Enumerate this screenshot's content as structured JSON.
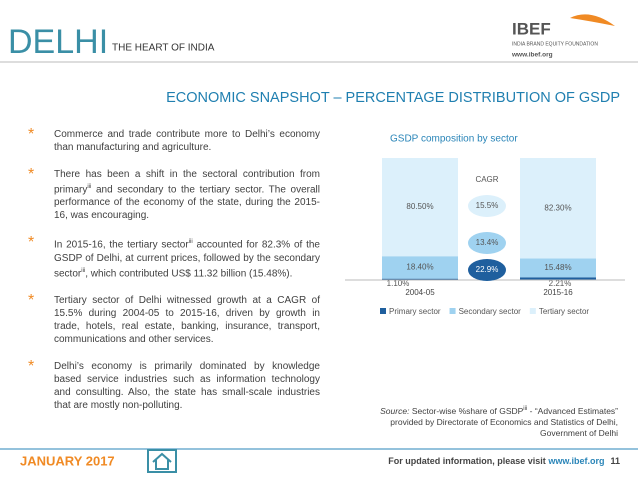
{
  "header": {
    "title": "DELHI",
    "subtitle": "THE HEART OF INDIA",
    "logo": "IBEF",
    "logo_caption": "INDIA BRAND EQUITY FOUNDATION",
    "logo_url": "www.ibef.org"
  },
  "heading": "ECONOMIC SNAPSHOT – PERCENTAGE DISTRIBUTION OF GSDP",
  "bullets": [
    [
      "Commerce and trade contribute more to Delhi’s economy than manufacturing and agriculture."
    ],
    [
      "There has been a shift in the sectoral contribution from primary",
      "iii",
      " and secondary to the tertiary sector. The overall performance of the economy of the state, during the 2015-16, was encouraging."
    ],
    [
      "In 2015-16, the tertiary sector",
      "iii",
      " accounted for 82.3% of the GSDP of Delhi, at current prices, followed by the secondary sector",
      "iii",
      ", which contributed US$ 11.32 billion (15.48%)."
    ],
    [
      "Tertiary sector of Delhi witnessed growth at a CAGR of 15.5% during 2004-05 to 2015-16, driven by growth in trade, hotels, real estate, banking, insurance, transport, communications and other services."
    ],
    [
      "Delhi’s economy is primarily dominated by knowledge based service industries such as information technology and consulting. Also, the state has small-scale industries that are mostly non-polluting."
    ]
  ],
  "chart_data": {
    "type": "stacked_bar",
    "title": "GSDP composition by sector",
    "categories": [
      "2004-05",
      "2015-16"
    ],
    "ylim": [
      0,
      100
    ],
    "series": [
      {
        "name": "Primary sector",
        "color": "#1f5f9e",
        "values": [
          1.1,
          2.21
        ],
        "value_labels": [
          "1.10%",
          "2.21%"
        ]
      },
      {
        "name": "Secondary sector",
        "color": "#9fd2f0",
        "values": [
          18.4,
          15.48
        ],
        "value_labels": [
          "18.40%",
          "15.48%"
        ]
      },
      {
        "name": "Tertiary sector",
        "color": "#dcf0fb",
        "values": [
          80.5,
          82.3
        ],
        "value_labels": [
          "80.50%",
          "82.30%"
        ]
      }
    ],
    "cagr": {
      "label": "CAGR",
      "values": [
        22.9,
        13.4,
        15.5
      ],
      "value_labels": [
        "22.9%",
        "13.4%",
        "15.5%"
      ]
    }
  },
  "source": {
    "label": "Source:",
    "text": "Sector-wise %share of GSDP",
    "sup": "iii",
    "rest": " - “Advanced Estimates” provided by Directorate of Economics and Statistics of Delhi, Government of Delhi"
  },
  "footer": {
    "date": "JANUARY 2017",
    "note": "For updated information, please visit ",
    "url": "www.ibef.org",
    "page": "11"
  }
}
